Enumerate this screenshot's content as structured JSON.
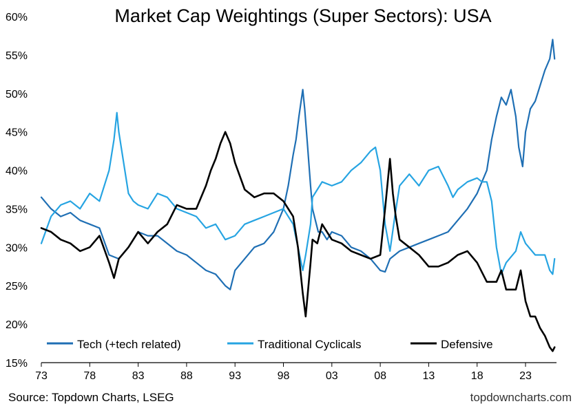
{
  "chart_data": {
    "type": "line",
    "title": "Market Cap Weightings (Super Sectors): USA",
    "xlabel": "",
    "ylabel": "",
    "xlim": [
      1973,
      2026.2
    ],
    "ylim": [
      15,
      60
    ],
    "y_ticks": [
      15,
      20,
      25,
      30,
      35,
      40,
      45,
      50,
      55,
      60
    ],
    "y_tick_labels": [
      "15%",
      "20%",
      "25%",
      "30%",
      "35%",
      "40%",
      "45%",
      "50%",
      "55%",
      "60%"
    ],
    "x_ticks": [
      1973,
      1978,
      1983,
      1988,
      1993,
      1998,
      2003,
      2008,
      2013,
      2018,
      2023
    ],
    "x_tick_labels": [
      "73",
      "78",
      "83",
      "88",
      "93",
      "98",
      "03",
      "08",
      "13",
      "18",
      "23"
    ],
    "grid": false,
    "legend_position": "bottom",
    "series": [
      {
        "name": "Tech (+tech related)",
        "color": "#1f6fb4",
        "x": [
          1973.0,
          1974.0,
          1975.0,
          1976.0,
          1977.0,
          1978.0,
          1979.0,
          1980.0,
          1981.0,
          1982.0,
          1983.0,
          1984.0,
          1985.0,
          1986.0,
          1987.0,
          1988.0,
          1989.0,
          1990.0,
          1991.0,
          1992.0,
          1992.5,
          1993.0,
          1994.0,
          1995.0,
          1996.0,
          1997.0,
          1997.5,
          1998.0,
          1998.5,
          1999.0,
          1999.3,
          1999.6,
          2000.0,
          2000.2,
          2000.5,
          2000.8,
          2001.0,
          2001.3,
          2001.6,
          2002.0,
          2002.5,
          2003.0,
          2004.0,
          2005.0,
          2006.0,
          2007.0,
          2008.0,
          2008.5,
          2009.0,
          2010.0,
          2011.0,
          2012.0,
          2013.0,
          2014.0,
          2015.0,
          2016.0,
          2017.0,
          2018.0,
          2018.5,
          2019.0,
          2019.5,
          2020.0,
          2020.5,
          2021.0,
          2021.5,
          2022.0,
          2022.3,
          2022.7,
          2023.0,
          2023.5,
          2024.0,
          2024.5,
          2025.0,
          2025.5,
          2025.8,
          2026.0
        ],
        "values": [
          36.5,
          35.0,
          34.0,
          34.5,
          33.5,
          33.0,
          32.5,
          29.0,
          28.5,
          30.0,
          32.0,
          31.5,
          31.5,
          30.5,
          29.5,
          29.0,
          28.0,
          27.0,
          26.5,
          25.0,
          24.5,
          27.0,
          28.5,
          30.0,
          30.5,
          32.0,
          33.5,
          35.0,
          38.0,
          42.0,
          44.0,
          47.0,
          50.5,
          48.0,
          43.0,
          38.0,
          35.0,
          33.5,
          32.0,
          32.0,
          31.0,
          32.0,
          31.5,
          30.0,
          29.5,
          28.5,
          27.0,
          26.8,
          28.5,
          29.5,
          30.0,
          30.5,
          31.0,
          31.5,
          32.0,
          33.5,
          35.0,
          37.0,
          38.5,
          40.0,
          44.0,
          47.0,
          49.5,
          48.5,
          50.5,
          47.0,
          43.0,
          40.5,
          45.0,
          48.0,
          49.0,
          51.0,
          53.0,
          54.5,
          57.0,
          54.5
        ]
      },
      {
        "name": "Traditional Cyclicals",
        "color": "#26a4e2",
        "x": [
          1973.0,
          1974.0,
          1975.0,
          1976.0,
          1977.0,
          1978.0,
          1979.0,
          1980.0,
          1980.5,
          1980.8,
          1981.0,
          1981.5,
          1982.0,
          1982.5,
          1983.0,
          1984.0,
          1985.0,
          1986.0,
          1987.0,
          1988.0,
          1989.0,
          1990.0,
          1991.0,
          1992.0,
          1993.0,
          1994.0,
          1995.0,
          1996.0,
          1997.0,
          1998.0,
          1999.0,
          1999.5,
          2000.0,
          2000.3,
          2000.8,
          2001.0,
          2001.5,
          2002.0,
          2003.0,
          2004.0,
          2005.0,
          2006.0,
          2007.0,
          2007.5,
          2008.0,
          2008.5,
          2009.0,
          2009.5,
          2010.0,
          2011.0,
          2012.0,
          2013.0,
          2014.0,
          2015.0,
          2015.5,
          2016.0,
          2017.0,
          2018.0,
          2018.5,
          2019.0,
          2019.5,
          2020.0,
          2020.5,
          2021.0,
          2022.0,
          2022.5,
          2023.0,
          2024.0,
          2025.0,
          2025.5,
          2025.8,
          2026.0
        ],
        "values": [
          30.5,
          34.0,
          35.5,
          36.0,
          35.0,
          37.0,
          36.0,
          40.0,
          44.0,
          47.5,
          45.0,
          41.0,
          37.0,
          36.0,
          35.5,
          35.0,
          37.0,
          36.5,
          35.0,
          34.5,
          34.0,
          32.5,
          33.0,
          31.0,
          31.5,
          33.0,
          33.5,
          34.0,
          34.5,
          35.0,
          33.0,
          30.0,
          27.0,
          29.0,
          33.0,
          36.5,
          37.5,
          38.5,
          38.0,
          38.5,
          40.0,
          41.0,
          42.5,
          43.0,
          40.0,
          33.0,
          29.5,
          34.0,
          38.0,
          39.5,
          38.0,
          40.0,
          40.5,
          38.0,
          36.5,
          37.5,
          38.5,
          39.0,
          38.5,
          38.5,
          36.0,
          30.0,
          26.5,
          28.0,
          29.5,
          32.0,
          30.5,
          29.0,
          29.0,
          27.0,
          26.5,
          28.5
        ]
      },
      {
        "name": "Defensive",
        "color": "#000000",
        "x": [
          1973.0,
          1974.0,
          1975.0,
          1976.0,
          1977.0,
          1978.0,
          1979.0,
          1980.0,
          1980.5,
          1981.0,
          1982.0,
          1983.0,
          1984.0,
          1985.0,
          1986.0,
          1987.0,
          1988.0,
          1989.0,
          1990.0,
          1990.5,
          1991.0,
          1991.5,
          1992.0,
          1992.5,
          1993.0,
          1994.0,
          1995.0,
          1996.0,
          1997.0,
          1998.0,
          1999.0,
          1999.5,
          2000.0,
          2000.3,
          2000.8,
          2001.0,
          2001.5,
          2002.0,
          2003.0,
          2004.0,
          2005.0,
          2006.0,
          2007.0,
          2008.0,
          2008.5,
          2009.0,
          2009.3,
          2009.6,
          2010.0,
          2011.0,
          2012.0,
          2013.0,
          2014.0,
          2015.0,
          2016.0,
          2017.0,
          2018.0,
          2019.0,
          2020.0,
          2020.5,
          2021.0,
          2022.0,
          2022.5,
          2023.0,
          2023.5,
          2024.0,
          2024.5,
          2025.0,
          2025.5,
          2025.8,
          2026.0
        ],
        "values": [
          32.5,
          32.0,
          31.0,
          30.5,
          29.5,
          30.0,
          31.5,
          28.0,
          26.0,
          28.5,
          30.0,
          32.0,
          30.5,
          32.0,
          33.0,
          35.5,
          35.0,
          35.0,
          38.0,
          40.0,
          41.5,
          43.5,
          45.0,
          43.5,
          41.0,
          37.5,
          36.5,
          37.0,
          37.0,
          36.0,
          34.0,
          30.0,
          24.0,
          21.0,
          28.0,
          31.0,
          30.5,
          33.0,
          31.0,
          30.5,
          29.5,
          29.0,
          28.5,
          29.0,
          35.0,
          41.5,
          37.0,
          34.0,
          31.0,
          30.0,
          29.0,
          27.5,
          27.5,
          28.0,
          29.0,
          29.5,
          28.0,
          25.5,
          25.5,
          27.0,
          24.5,
          24.5,
          27.0,
          23.0,
          21.0,
          21.0,
          19.5,
          18.5,
          17.0,
          16.5,
          17.0
        ]
      }
    ]
  },
  "footer": {
    "source": "Source: Topdown Charts, LSEG",
    "brand": "topdowncharts.com"
  }
}
